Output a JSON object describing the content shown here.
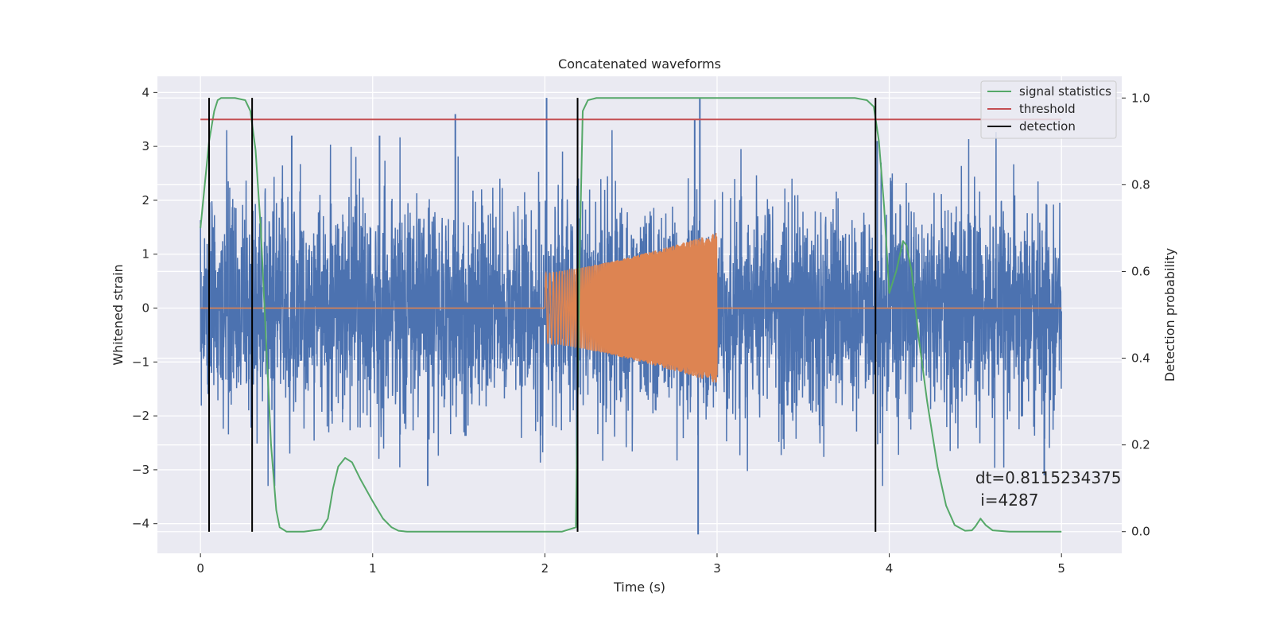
{
  "chart_data": {
    "type": "line",
    "title": "Concatenated waveforms",
    "xlabel": "Time (s)",
    "ylabel": "Whitened strain",
    "y2label": "Detection probability",
    "xlim": [
      -0.25,
      5.35
    ],
    "ylim": [
      -4.55,
      4.3
    ],
    "y2lim": [
      -0.05,
      1.05
    ],
    "x_ticks": [
      0,
      1,
      2,
      3,
      4,
      5
    ],
    "y_ticks": [
      -4,
      -3,
      -2,
      -1,
      0,
      1,
      2,
      3,
      4
    ],
    "y2_ticks": [
      0.0,
      0.2,
      0.4,
      0.6,
      0.8,
      1.0
    ],
    "y2_tick_labels": [
      "0.0",
      "0.2",
      "0.4",
      "0.6",
      "0.8",
      "1.0"
    ],
    "grid": true,
    "legend_position": "top-right",
    "background_color": "#eaeaf2",
    "series": [
      {
        "name": "",
        "kind": "noise",
        "axis": "left",
        "color": "#4c72b0",
        "x_range": [
          0,
          5
        ],
        "sigma": 1.0,
        "peaks": [
          {
            "x": 1.48,
            "y": 3.6
          },
          {
            "x": 1.04,
            "y": 3.2
          },
          {
            "x": 0.53,
            "y": 3.2
          },
          {
            "x": 2.01,
            "y": 3.9
          },
          {
            "x": 2.9,
            "y": 3.9
          },
          {
            "x": 2.87,
            "y": 3.5
          },
          {
            "x": 2.89,
            "y": -4.2
          },
          {
            "x": 1.32,
            "y": -3.3
          },
          {
            "x": 0.43,
            "y": -3.3
          },
          {
            "x": 3.93,
            "y": 3.1
          },
          {
            "x": 4.9,
            "y": -3.1
          }
        ]
      },
      {
        "name": "",
        "kind": "chirp",
        "axis": "left",
        "color": "#dd8452",
        "x_range": [
          0,
          5
        ],
        "burst_range": [
          2.0,
          3.0
        ],
        "amp_start": 0.65,
        "amp_end": 1.4
      },
      {
        "name": "signal statistics",
        "axis": "right",
        "color": "#55a868",
        "x": [
          0.0,
          0.02,
          0.05,
          0.08,
          0.1,
          0.12,
          0.15,
          0.2,
          0.26,
          0.29,
          0.32,
          0.35,
          0.38,
          0.41,
          0.44,
          0.46,
          0.5,
          0.6,
          0.7,
          0.74,
          0.77,
          0.8,
          0.84,
          0.88,
          0.93,
          1.0,
          1.06,
          1.11,
          1.15,
          1.2,
          1.5,
          1.8,
          2.1,
          2.18,
          2.2,
          2.22,
          2.25,
          2.3,
          2.5,
          3.0,
          3.5,
          3.8,
          3.87,
          3.91,
          3.94,
          3.97,
          4.0,
          4.04,
          4.08,
          4.1,
          4.13,
          4.17,
          4.22,
          4.28,
          4.33,
          4.38,
          4.44,
          4.48,
          4.5,
          4.53,
          4.56,
          4.6,
          4.7,
          4.8,
          5.0
        ],
        "values": [
          0.7,
          0.78,
          0.9,
          0.97,
          0.995,
          1.0,
          1.0,
          1.0,
          0.995,
          0.97,
          0.88,
          0.7,
          0.45,
          0.2,
          0.05,
          0.01,
          0.0,
          0.0,
          0.005,
          0.03,
          0.1,
          0.15,
          0.17,
          0.16,
          0.12,
          0.07,
          0.03,
          0.01,
          0.002,
          0.0,
          0.0,
          0.0,
          0.0,
          0.01,
          0.6,
          0.97,
          0.995,
          1.0,
          1.0,
          1.0,
          1.0,
          1.0,
          0.995,
          0.98,
          0.9,
          0.75,
          0.55,
          0.6,
          0.67,
          0.66,
          0.6,
          0.45,
          0.3,
          0.15,
          0.06,
          0.015,
          0.002,
          0.003,
          0.012,
          0.03,
          0.015,
          0.003,
          0.0,
          0.0,
          0.0
        ]
      },
      {
        "name": "threshold",
        "axis": "left",
        "color": "#c44e52",
        "x": [
          0,
          5
        ],
        "values": [
          3.5,
          3.5
        ]
      },
      {
        "name": "detection",
        "kind": "vlines",
        "axis": "left",
        "color": "#000000",
        "x": [
          0.05,
          0.3,
          2.19,
          3.92
        ],
        "ymin": -4.15,
        "ymax": 3.9
      }
    ],
    "legend": [
      {
        "label": "signal statistics",
        "color": "#55a868"
      },
      {
        "label": "threshold",
        "color": "#c44e52"
      },
      {
        "label": "detection",
        "color": "#000000"
      }
    ],
    "annotation": {
      "text_lines": [
        "dt=0.8115234375",
        " i=4287"
      ],
      "x": 4.5,
      "y": -3.25
    }
  }
}
